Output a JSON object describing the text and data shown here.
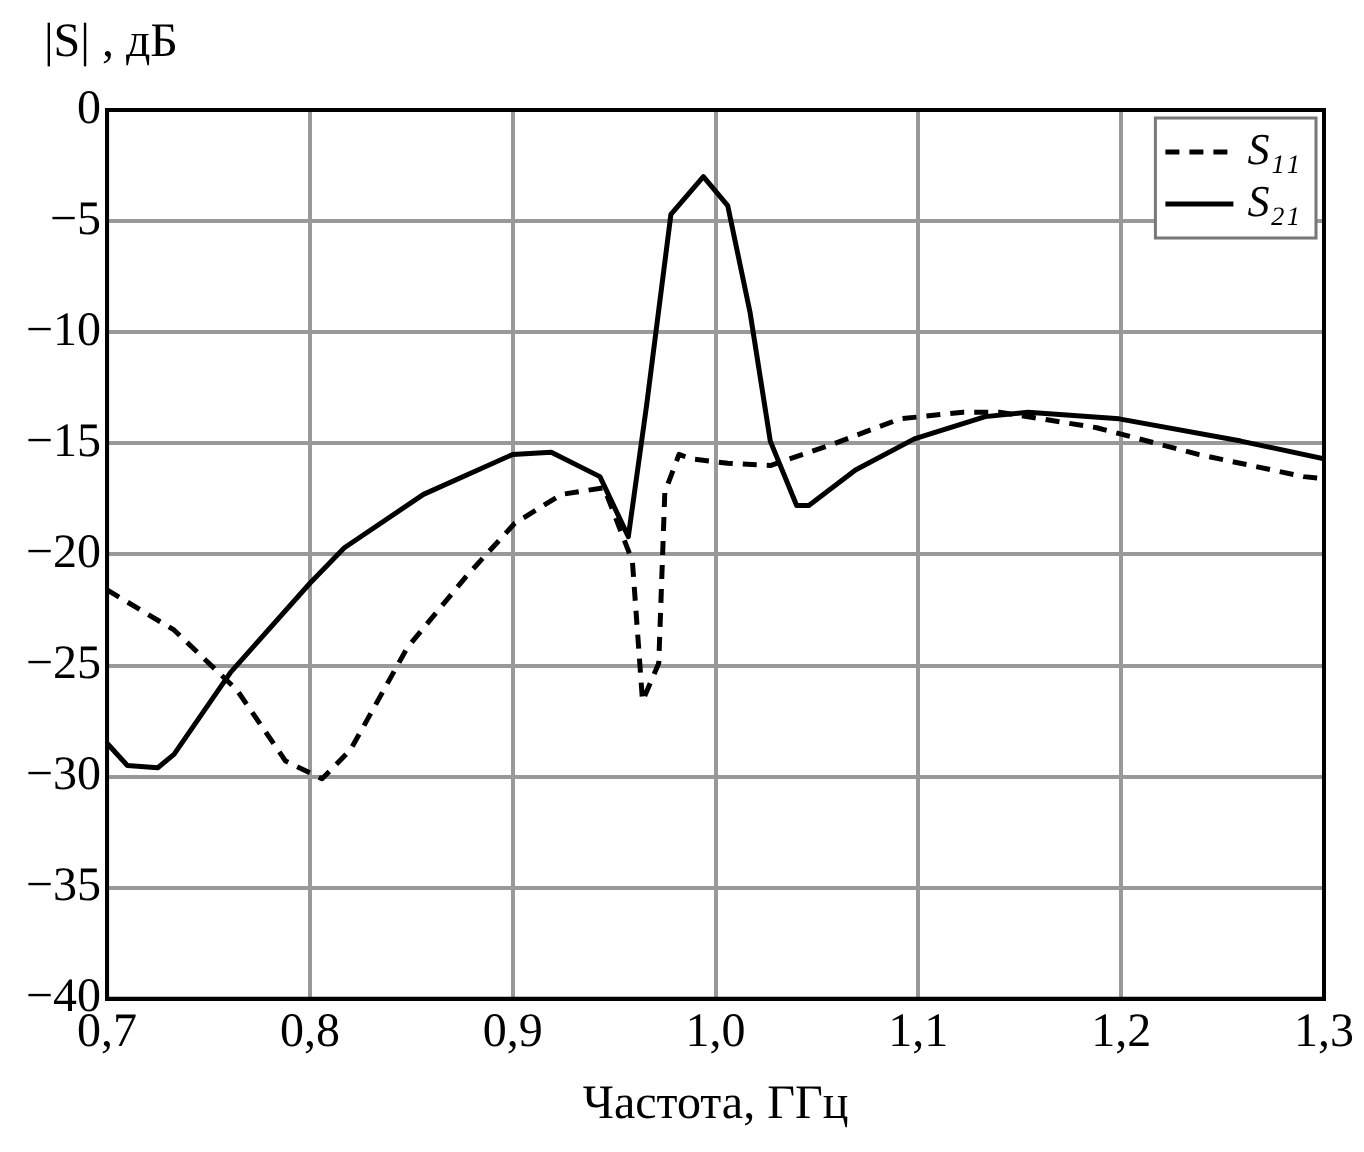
{
  "chart_data": {
    "type": "line",
    "xlabel": "Частота, ГГц",
    "ylabel": "|S| , дБ",
    "xlim": [
      0.7,
      1.3
    ],
    "ylim": [
      -40,
      0
    ],
    "xticks": [
      {
        "value": 0.7,
        "label": "0,7"
      },
      {
        "value": 0.8,
        "label": "0,8"
      },
      {
        "value": 0.9,
        "label": "0,9"
      },
      {
        "value": 1.0,
        "label": "1,0"
      },
      {
        "value": 1.1,
        "label": "1,1"
      },
      {
        "value": 1.2,
        "label": "1,2"
      },
      {
        "value": 1.3,
        "label": "1,3"
      }
    ],
    "yticks": [
      0,
      {
        "value": -5,
        "label": "−5"
      },
      {
        "value": -10,
        "label": "−10"
      },
      {
        "value": -15,
        "label": "−15"
      },
      {
        "value": -20,
        "label": "−20"
      },
      {
        "value": -25,
        "label": "−25"
      },
      {
        "value": -30,
        "label": "−30"
      },
      {
        "value": -35,
        "label": "−35"
      },
      {
        "value": -40,
        "label": "−40"
      }
    ],
    "grid": true,
    "legend": "top right",
    "marker": "none",
    "series": [
      {
        "name": "S₁₁",
        "color": "#000000",
        "line_style": "dashed",
        "x": [
          0.7,
          0.733,
          0.764,
          0.788,
          0.806,
          0.82,
          0.848,
          0.877,
          0.901,
          0.924,
          0.945,
          0.959,
          0.964,
          0.972,
          0.975,
          0.982,
          0.988,
          1.006,
          1.027,
          1.056,
          1.091,
          1.122,
          1.14,
          1.188,
          1.238,
          1.29,
          1.3
        ],
        "values": [
          -21.6,
          -23.4,
          -26.1,
          -29.3,
          -30.1,
          -28.8,
          -24.2,
          -21.0,
          -18.6,
          -17.3,
          -17.0,
          -20.3,
          -26.6,
          -24.9,
          -17.2,
          -15.5,
          -15.7,
          -15.9,
          -16.0,
          -15.1,
          -13.9,
          -13.6,
          -13.6,
          -14.3,
          -15.5,
          -16.5,
          -16.6
        ]
      },
      {
        "name": "S₂₁",
        "color": "#000000",
        "line_style": "solid",
        "x": [
          0.7,
          0.71,
          0.725,
          0.733,
          0.761,
          0.8,
          0.817,
          0.856,
          0.9,
          0.919,
          0.943,
          0.957,
          0.966,
          0.978,
          0.994,
          1.006,
          1.017,
          1.027,
          1.04,
          1.046,
          1.069,
          1.098,
          1.133,
          1.154,
          1.199,
          1.259,
          1.3
        ],
        "values": [
          -28.5,
          -29.5,
          -29.6,
          -29.0,
          -25.3,
          -21.3,
          -19.7,
          -17.3,
          -15.5,
          -15.4,
          -16.5,
          -19.2,
          -13.3,
          -4.7,
          -3.0,
          -4.3,
          -9.1,
          -14.9,
          -17.8,
          -17.8,
          -16.2,
          -14.8,
          -13.8,
          -13.6,
          -13.9,
          -14.9,
          -15.7
        ]
      }
    ]
  }
}
